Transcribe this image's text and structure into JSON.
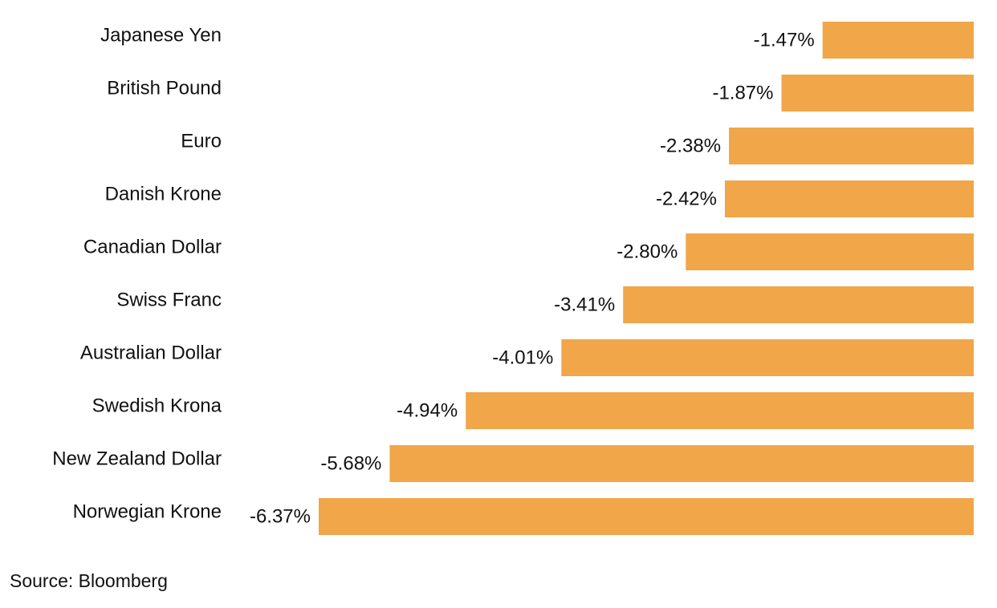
{
  "chart_data": {
    "type": "bar",
    "orientation": "horizontal",
    "categories": [
      "Japanese Yen",
      "British Pound",
      "Euro",
      "Danish Krone",
      "Canadian Dollar",
      "Swiss Franc",
      "Australian Dollar",
      "Swedish Krona",
      "New Zealand Dollar",
      "Norwegian Krone"
    ],
    "values": [
      -1.47,
      -1.87,
      -2.38,
      -2.42,
      -2.8,
      -3.41,
      -4.01,
      -4.94,
      -5.68,
      -6.37
    ],
    "value_labels": [
      "-1.47%",
      "-1.87%",
      "-2.38%",
      "-2.42%",
      "-2.80%",
      "-3.41%",
      "-4.01%",
      "-4.94%",
      "-5.68%",
      "-6.37%"
    ],
    "xlim": [
      -6.37,
      0
    ],
    "grid": false,
    "legend": "none",
    "bar_color": "#f0a649"
  },
  "source": "Source: Bloomberg"
}
